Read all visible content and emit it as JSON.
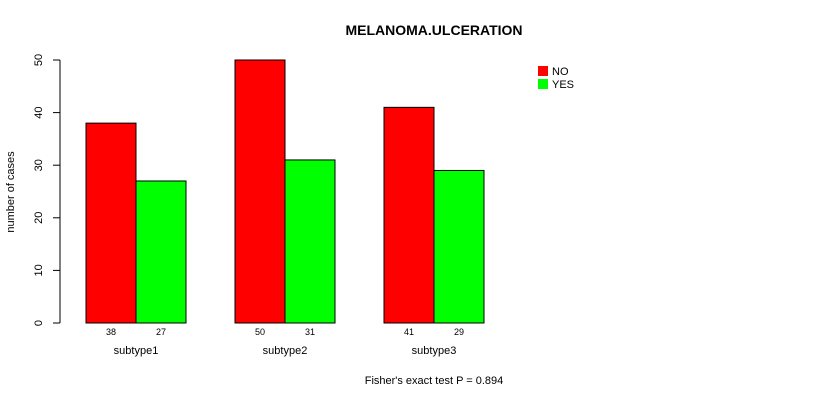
{
  "chart_data": {
    "type": "bar",
    "title": "MELANOMA.ULCERATION",
    "xlabel": "",
    "ylabel": "number of cases",
    "ylim": [
      0,
      50
    ],
    "yticks": [
      0,
      10,
      20,
      30,
      40,
      50
    ],
    "categories": [
      "subtype1",
      "subtype2",
      "subtype3"
    ],
    "series": [
      {
        "name": "NO",
        "color": "#ff0000",
        "values": [
          38,
          50,
          41
        ]
      },
      {
        "name": "YES",
        "color": "#00ff00",
        "values": [
          27,
          31,
          29
        ]
      }
    ],
    "legend_position": "top-right",
    "footnote": "Fisher's exact test P = 0.894"
  }
}
